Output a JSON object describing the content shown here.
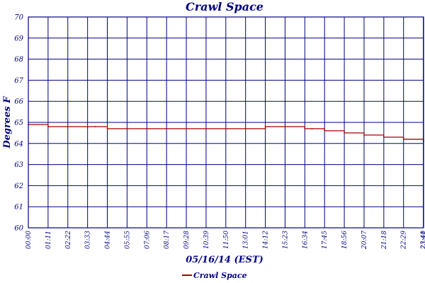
{
  "chart_data": {
    "type": "line",
    "title": "Crawl Space",
    "xlabel": "05/16/14 (EST)",
    "ylabel": "Degrees F",
    "ylim": [
      60,
      70
    ],
    "yticks": [
      "60",
      "61",
      "62",
      "63",
      "64",
      "65",
      "66",
      "67",
      "68",
      "69",
      "70"
    ],
    "xticks": [
      "00:00",
      "01:11",
      "02:22",
      "03:33",
      "04:44",
      "05:55",
      "07:06",
      "08:17",
      "09:28",
      "10:39",
      "11:50",
      "13:01",
      "14:12",
      "15:23",
      "16:34",
      "17:45",
      "18:56",
      "20:07",
      "21:18",
      "22:29",
      "23:40",
      "23:41"
    ],
    "grid": true,
    "legend_position": "bottom-center",
    "colors": {
      "series": "#aa0000",
      "axis": "#000080",
      "grid": "#000080"
    },
    "series": [
      {
        "name": "Crawl Space",
        "x": [
          "00:00",
          "01:11",
          "02:22",
          "03:33",
          "04:00",
          "04:44",
          "05:55",
          "07:06",
          "08:17",
          "09:28",
          "10:39",
          "11:50",
          "13:01",
          "14:12",
          "15:23",
          "16:34",
          "17:00",
          "17:45",
          "18:56",
          "20:07",
          "21:18",
          "22:29",
          "23:41"
        ],
        "values": [
          64.9,
          64.8,
          64.8,
          64.8,
          64.8,
          64.7,
          64.7,
          64.7,
          64.7,
          64.7,
          64.7,
          64.7,
          64.7,
          64.8,
          64.8,
          64.7,
          64.7,
          64.6,
          64.5,
          64.4,
          64.3,
          64.2,
          64.1
        ]
      }
    ]
  }
}
